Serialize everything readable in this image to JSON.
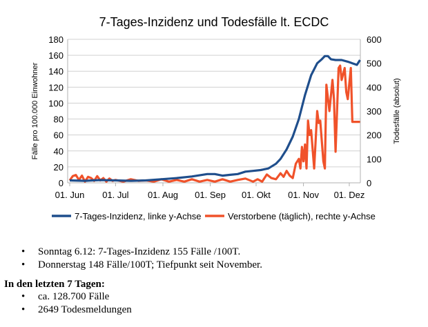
{
  "chart_data": {
    "type": "line",
    "title": "7-Tages-Inzidenz und Todesfälle lt. ECDC",
    "ylabel": "Fälle pro 100.000 Einwohner",
    "y2label": "Todesfälle (absolut)",
    "ylim": [
      0,
      180
    ],
    "y2lim": [
      0,
      600
    ],
    "yticks": [
      "0",
      "20",
      "40",
      "60",
      "80",
      "100",
      "120",
      "140",
      "160",
      "180"
    ],
    "y2ticks": [
      "0",
      "100",
      "200",
      "300",
      "400",
      "500",
      "600"
    ],
    "xticks": [
      {
        "label": "01. Jun",
        "day": 0
      },
      {
        "label": "01. Jul",
        "day": 30
      },
      {
        "label": "01. Aug",
        "day": 61
      },
      {
        "label": "01. Sep",
        "day": 92
      },
      {
        "label": "01. Okt",
        "day": 122
      },
      {
        "label": "01. Nov",
        "day": 153
      },
      {
        "label": "01. Dez",
        "day": 183
      }
    ],
    "grid": true,
    "legend": "bottom",
    "series": [
      {
        "name": "7-Tages-Inzidenz, linke y-Achse",
        "axis": "left",
        "color": "#1f4e8c",
        "x": [
          0,
          10,
          20,
          30,
          40,
          50,
          60,
          70,
          80,
          90,
          95,
          100,
          105,
          110,
          115,
          120,
          125,
          130,
          135,
          138,
          142,
          146,
          150,
          154,
          158,
          162,
          165,
          167,
          169,
          171,
          174,
          178,
          182,
          185,
          188,
          190
        ],
        "y": [
          3,
          2.5,
          3.5,
          3,
          2.5,
          3,
          4.5,
          6,
          8,
          11,
          11,
          9,
          10,
          11,
          14,
          15,
          16,
          18,
          24,
          30,
          42,
          58,
          80,
          110,
          135,
          150,
          155,
          159,
          159,
          155,
          154,
          154,
          152,
          150,
          148,
          154
        ]
      },
      {
        "name": "Verstorbene (täglich), rechte y-Achse",
        "axis": "right",
        "color": "#f0522a",
        "x": [
          0,
          2,
          4,
          6,
          8,
          10,
          12,
          14,
          16,
          18,
          20,
          22,
          24,
          26,
          28,
          30,
          35,
          40,
          45,
          50,
          55,
          60,
          65,
          70,
          75,
          80,
          85,
          90,
          95,
          100,
          105,
          110,
          115,
          120,
          123,
          126,
          129,
          132,
          135,
          138,
          140,
          142,
          144,
          146,
          148,
          150,
          151,
          152,
          153,
          154,
          155,
          156,
          157,
          158,
          160,
          162,
          163,
          164,
          166,
          167,
          168,
          170,
          172,
          173,
          174,
          176,
          177,
          178,
          180,
          181,
          182,
          184,
          185,
          186,
          187,
          188,
          189,
          190
        ],
        "y": [
          10,
          28,
          33,
          12,
          30,
          5,
          25,
          20,
          8,
          28,
          10,
          20,
          5,
          18,
          8,
          12,
          5,
          15,
          8,
          10,
          5,
          15,
          5,
          12,
          5,
          15,
          5,
          12,
          5,
          15,
          5,
          12,
          18,
          5,
          15,
          5,
          35,
          20,
          15,
          40,
          25,
          50,
          30,
          20,
          80,
          100,
          60,
          150,
          90,
          160,
          60,
          260,
          200,
          220,
          60,
          300,
          250,
          260,
          90,
          60,
          410,
          300,
          430,
          350,
          130,
          480,
          490,
          430,
          480,
          380,
          350,
          480,
          255,
          255,
          255,
          255,
          255,
          255
        ]
      }
    ]
  }
}
